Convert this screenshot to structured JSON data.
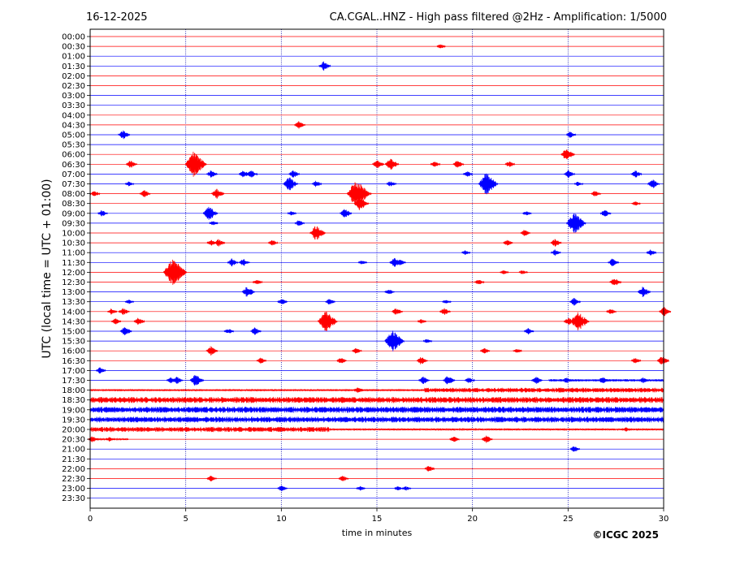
{
  "chart_data": {
    "type": "line",
    "title_left": "16-12-2025",
    "title_right": "CA.CGAL..HNZ - High pass filtered @2Hz - Amplification: 1/5000",
    "xlabel": "time in minutes",
    "ylabel": "UTC (local time = UTC + 01:00)",
    "copyright": "©ICGC 2025",
    "xlim": [
      0,
      30
    ],
    "x_ticks": [
      "0",
      "5",
      "10",
      "15",
      "20",
      "25",
      "30"
    ],
    "x_tick_values": [
      0,
      5,
      10,
      15,
      20,
      25,
      30
    ],
    "grid_x": true,
    "colors": {
      "odd_hour": "#0000ff",
      "even_hour": "#ff0000"
    },
    "rows": [
      "00:00",
      "00:30",
      "01:00",
      "01:30",
      "02:00",
      "02:30",
      "03:00",
      "03:30",
      "04:00",
      "04:30",
      "05:00",
      "05:30",
      "06:00",
      "06:30",
      "07:00",
      "07:30",
      "08:00",
      "08:30",
      "09:00",
      "09:30",
      "10:00",
      "10:30",
      "11:00",
      "11:30",
      "12:00",
      "12:30",
      "13:00",
      "13:30",
      "14:00",
      "14:30",
      "15:00",
      "15:30",
      "16:00",
      "16:30",
      "17:00",
      "17:30",
      "18:00",
      "18:30",
      "19:00",
      "19:30",
      "20:00",
      "20:30",
      "21:00",
      "21:30",
      "22:00",
      "22:30",
      "23:00",
      "23:30"
    ],
    "events": [
      {
        "row": 1,
        "t": 18.3,
        "a": 3
      },
      {
        "row": 3,
        "t": 12.2,
        "a": 6
      },
      {
        "row": 9,
        "t": 10.9,
        "a": 5
      },
      {
        "row": 10,
        "t": 1.7,
        "a": 6
      },
      {
        "row": 10,
        "t": 25.1,
        "a": 4
      },
      {
        "row": 12,
        "t": 24.9,
        "a": 8
      },
      {
        "row": 13,
        "t": 2.1,
        "a": 5
      },
      {
        "row": 13,
        "t": 5.4,
        "a": 16
      },
      {
        "row": 13,
        "t": 15.0,
        "a": 6
      },
      {
        "row": 13,
        "t": 15.7,
        "a": 8
      },
      {
        "row": 13,
        "t": 18.0,
        "a": 4
      },
      {
        "row": 13,
        "t": 19.2,
        "a": 5
      },
      {
        "row": 13,
        "t": 21.9,
        "a": 4
      },
      {
        "row": 14,
        "t": 6.3,
        "a": 5
      },
      {
        "row": 14,
        "t": 8.0,
        "a": 5
      },
      {
        "row": 14,
        "t": 8.4,
        "a": 5
      },
      {
        "row": 14,
        "t": 10.6,
        "a": 5
      },
      {
        "row": 14,
        "t": 19.7,
        "a": 4
      },
      {
        "row": 14,
        "t": 25.0,
        "a": 5
      },
      {
        "row": 14,
        "t": 28.5,
        "a": 5
      },
      {
        "row": 15,
        "t": 2.0,
        "a": 3
      },
      {
        "row": 15,
        "t": 10.4,
        "a": 9
      },
      {
        "row": 15,
        "t": 11.8,
        "a": 4
      },
      {
        "row": 15,
        "t": 15.7,
        "a": 4
      },
      {
        "row": 15,
        "t": 20.7,
        "a": 14
      },
      {
        "row": 15,
        "t": 25.5,
        "a": 3
      },
      {
        "row": 15,
        "t": 29.4,
        "a": 6
      },
      {
        "row": 16,
        "t": 0.2,
        "a": 4
      },
      {
        "row": 16,
        "t": 2.8,
        "a": 5
      },
      {
        "row": 16,
        "t": 6.6,
        "a": 7
      },
      {
        "row": 16,
        "t": 13.9,
        "a": 18
      },
      {
        "row": 16,
        "t": 14.4,
        "a": 4
      },
      {
        "row": 16,
        "t": 26.4,
        "a": 4
      },
      {
        "row": 17,
        "t": 14.1,
        "a": 9
      },
      {
        "row": 17,
        "t": 28.5,
        "a": 3
      },
      {
        "row": 18,
        "t": 0.6,
        "a": 4
      },
      {
        "row": 18,
        "t": 6.2,
        "a": 9
      },
      {
        "row": 18,
        "t": 10.5,
        "a": 3
      },
      {
        "row": 18,
        "t": 13.3,
        "a": 6
      },
      {
        "row": 18,
        "t": 22.8,
        "a": 3
      },
      {
        "row": 18,
        "t": 26.9,
        "a": 5
      },
      {
        "row": 19,
        "t": 6.4,
        "a": 3
      },
      {
        "row": 19,
        "t": 10.9,
        "a": 4
      },
      {
        "row": 19,
        "t": 25.3,
        "a": 14
      },
      {
        "row": 20,
        "t": 11.8,
        "a": 10
      },
      {
        "row": 20,
        "t": 22.7,
        "a": 4
      },
      {
        "row": 21,
        "t": 6.3,
        "a": 4
      },
      {
        "row": 21,
        "t": 6.7,
        "a": 5
      },
      {
        "row": 21,
        "t": 9.5,
        "a": 4
      },
      {
        "row": 21,
        "t": 21.8,
        "a": 4
      },
      {
        "row": 21,
        "t": 24.3,
        "a": 5
      },
      {
        "row": 22,
        "t": 19.6,
        "a": 3
      },
      {
        "row": 22,
        "t": 24.3,
        "a": 4
      },
      {
        "row": 22,
        "t": 29.3,
        "a": 4
      },
      {
        "row": 23,
        "t": 7.4,
        "a": 5
      },
      {
        "row": 23,
        "t": 8.0,
        "a": 5
      },
      {
        "row": 23,
        "t": 14.2,
        "a": 3
      },
      {
        "row": 23,
        "t": 15.9,
        "a": 6
      },
      {
        "row": 23,
        "t": 16.2,
        "a": 4
      },
      {
        "row": 23,
        "t": 27.3,
        "a": 5
      },
      {
        "row": 24,
        "t": 4.3,
        "a": 18
      },
      {
        "row": 24,
        "t": 21.6,
        "a": 3
      },
      {
        "row": 24,
        "t": 22.6,
        "a": 3
      },
      {
        "row": 25,
        "t": 8.7,
        "a": 4
      },
      {
        "row": 25,
        "t": 20.3,
        "a": 4
      },
      {
        "row": 25,
        "t": 27.4,
        "a": 6
      },
      {
        "row": 26,
        "t": 8.2,
        "a": 7
      },
      {
        "row": 26,
        "t": 15.6,
        "a": 4
      },
      {
        "row": 26,
        "t": 28.9,
        "a": 7
      },
      {
        "row": 27,
        "t": 2.0,
        "a": 3
      },
      {
        "row": 27,
        "t": 10.0,
        "a": 4
      },
      {
        "row": 27,
        "t": 12.5,
        "a": 4
      },
      {
        "row": 27,
        "t": 18.6,
        "a": 3
      },
      {
        "row": 27,
        "t": 25.3,
        "a": 5
      },
      {
        "row": 28,
        "t": 1.1,
        "a": 4
      },
      {
        "row": 28,
        "t": 1.7,
        "a": 5
      },
      {
        "row": 28,
        "t": 16.0,
        "a": 5
      },
      {
        "row": 28,
        "t": 18.5,
        "a": 5
      },
      {
        "row": 28,
        "t": 27.2,
        "a": 4
      },
      {
        "row": 28,
        "t": 30.0,
        "a": 6
      },
      {
        "row": 29,
        "t": 1.3,
        "a": 4
      },
      {
        "row": 29,
        "t": 2.5,
        "a": 5
      },
      {
        "row": 29,
        "t": 12.3,
        "a": 14
      },
      {
        "row": 29,
        "t": 17.3,
        "a": 3
      },
      {
        "row": 29,
        "t": 25.0,
        "a": 5
      },
      {
        "row": 29,
        "t": 25.5,
        "a": 13
      },
      {
        "row": 30,
        "t": 1.8,
        "a": 6
      },
      {
        "row": 30,
        "t": 7.2,
        "a": 4
      },
      {
        "row": 30,
        "t": 8.6,
        "a": 5
      },
      {
        "row": 30,
        "t": 22.9,
        "a": 4
      },
      {
        "row": 31,
        "t": 15.8,
        "a": 14
      },
      {
        "row": 31,
        "t": 17.6,
        "a": 3
      },
      {
        "row": 32,
        "t": 6.3,
        "a": 6
      },
      {
        "row": 32,
        "t": 13.9,
        "a": 4
      },
      {
        "row": 32,
        "t": 20.6,
        "a": 4
      },
      {
        "row": 32,
        "t": 22.3,
        "a": 3
      },
      {
        "row": 33,
        "t": 8.9,
        "a": 4
      },
      {
        "row": 33,
        "t": 13.1,
        "a": 4
      },
      {
        "row": 33,
        "t": 17.3,
        "a": 5
      },
      {
        "row": 33,
        "t": 28.5,
        "a": 4
      },
      {
        "row": 33,
        "t": 29.9,
        "a": 6
      },
      {
        "row": 34,
        "t": 0.5,
        "a": 4
      },
      {
        "row": 35,
        "t": 4.2,
        "a": 4
      },
      {
        "row": 35,
        "t": 4.5,
        "a": 5
      },
      {
        "row": 35,
        "t": 5.5,
        "a": 8
      },
      {
        "row": 35,
        "t": 17.4,
        "a": 5
      },
      {
        "row": 35,
        "t": 18.7,
        "a": 6
      },
      {
        "row": 35,
        "t": 19.8,
        "a": 4
      },
      {
        "row": 35,
        "t": 23.3,
        "a": 5
      },
      {
        "row": 35,
        "t": 24.9,
        "a": 4
      },
      {
        "row": 35,
        "t": 26.8,
        "a": 5
      },
      {
        "row": 35,
        "t": 28.9,
        "a": 4
      },
      {
        "row": 36,
        "t": 14.0,
        "a": 4
      },
      {
        "row": 40,
        "t": 28.0,
        "a": 3
      },
      {
        "row": 41,
        "t": 0.1,
        "a": 4
      },
      {
        "row": 41,
        "t": 1.0,
        "a": 3
      },
      {
        "row": 41,
        "t": 19.0,
        "a": 4
      },
      {
        "row": 41,
        "t": 20.7,
        "a": 5
      },
      {
        "row": 42,
        "t": 25.3,
        "a": 4
      },
      {
        "row": 44,
        "t": 17.7,
        "a": 4
      },
      {
        "row": 45,
        "t": 6.3,
        "a": 4
      },
      {
        "row": 45,
        "t": 13.2,
        "a": 4
      },
      {
        "row": 46,
        "t": 10.0,
        "a": 4
      },
      {
        "row": 46,
        "t": 14.1,
        "a": 3
      },
      {
        "row": 46,
        "t": 16.1,
        "a": 3
      },
      {
        "row": 46,
        "t": 16.5,
        "a": 3
      }
    ],
    "noise_bands": [
      {
        "row": 35,
        "from": 24.0,
        "to": 30.0,
        "amp": 1.5
      },
      {
        "row": 36,
        "from": 0.0,
        "to": 17.5,
        "amp": 1.2
      },
      {
        "row": 36,
        "from": 17.5,
        "to": 30.0,
        "amp": 3.0
      },
      {
        "row": 37,
        "from": 0.0,
        "to": 30.0,
        "amp": 3.8
      },
      {
        "row": 38,
        "from": 0.0,
        "to": 30.0,
        "amp": 3.8
      },
      {
        "row": 39,
        "from": 0.0,
        "to": 30.0,
        "amp": 3.6
      },
      {
        "row": 40,
        "from": 0.0,
        "to": 12.5,
        "amp": 3.2
      },
      {
        "row": 40,
        "from": 12.5,
        "to": 30.0,
        "amp": 1.2
      },
      {
        "row": 41,
        "from": 0.0,
        "to": 2.0,
        "amp": 1.0
      }
    ]
  }
}
